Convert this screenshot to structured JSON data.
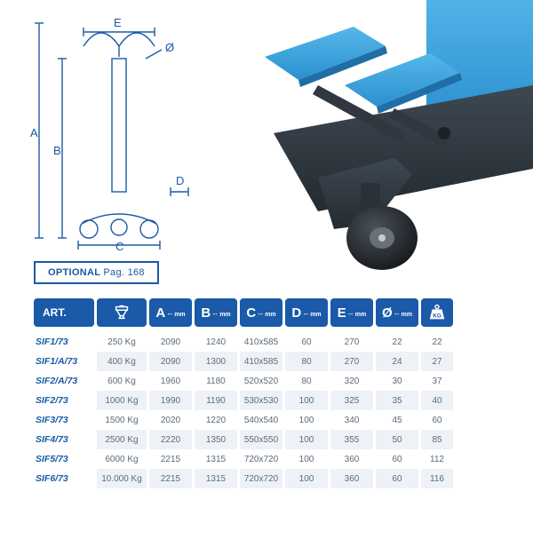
{
  "optional": {
    "label": "OPTIONAL",
    "page": "Pag. 168"
  },
  "diagram": {
    "labels": {
      "A": "A",
      "B": "B",
      "C": "C",
      "D": "D",
      "E": "E",
      "dia": "Ø"
    },
    "stroke": "#1a5aa8"
  },
  "headers": {
    "art": "ART.",
    "A": "A",
    "B": "B",
    "C": "C",
    "D": "D",
    "E": "E",
    "dia": "Ø",
    "unit": "mm",
    "kg": "KG"
  },
  "rows": [
    {
      "art": "SIF1/73",
      "cap": "250 Kg",
      "A": "2090",
      "B": "1240",
      "C": "410x585",
      "D": "60",
      "E": "270",
      "dia": "22",
      "kg": "22"
    },
    {
      "art": "SIF1/A/73",
      "cap": "400 Kg",
      "A": "2090",
      "B": "1300",
      "C": "410x585",
      "D": "80",
      "E": "270",
      "dia": "24",
      "kg": "27"
    },
    {
      "art": "SIF2/A/73",
      "cap": "600 Kg",
      "A": "1960",
      "B": "1180",
      "C": "520x520",
      "D": "80",
      "E": "320",
      "dia": "30",
      "kg": "37"
    },
    {
      "art": "SIF2/73",
      "cap": "1000 Kg",
      "A": "1990",
      "B": "1190",
      "C": "530x530",
      "D": "100",
      "E": "325",
      "dia": "35",
      "kg": "40"
    },
    {
      "art": "SIF3/73",
      "cap": "1500 Kg",
      "A": "2020",
      "B": "1220",
      "C": "540x540",
      "D": "100",
      "E": "340",
      "dia": "45",
      "kg": "60"
    },
    {
      "art": "SIF4/73",
      "cap": "2500 Kg",
      "A": "2220",
      "B": "1350",
      "C": "550x550",
      "D": "100",
      "E": "355",
      "dia": "50",
      "kg": "85"
    },
    {
      "art": "SIF5/73",
      "cap": "6000 Kg",
      "A": "2215",
      "B": "1315",
      "C": "720x720",
      "D": "100",
      "E": "360",
      "dia": "60",
      "kg": "112"
    },
    {
      "art": "SIF6/73",
      "cap": "10.000 Kg",
      "A": "2215",
      "B": "1315",
      "C": "720x720",
      "D": "100",
      "E": "360",
      "dia": "60",
      "kg": "116"
    }
  ],
  "colors": {
    "brand": "#1a5aa8",
    "row_alt": "#eef2f7",
    "text_muted": "#5b6b7a",
    "photo_blue": "#3aa7e0",
    "photo_dark": "#2f3740"
  }
}
